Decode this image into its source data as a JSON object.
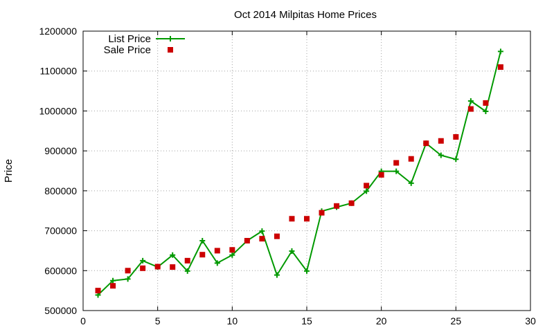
{
  "chart_data": {
    "type": "line",
    "title": "Oct 2014 Milpitas Home Prices",
    "xlabel": "",
    "ylabel": "Price",
    "xlim": [
      0,
      30
    ],
    "ylim": [
      500000,
      1200000
    ],
    "xticks": [
      0,
      5,
      10,
      15,
      20,
      25,
      30
    ],
    "yticks": [
      500000,
      600000,
      700000,
      800000,
      900000,
      1000000,
      1100000,
      1200000
    ],
    "grid": true,
    "legend_position": "top-left",
    "series": [
      {
        "name": "List Price",
        "style": "line-with-plus-markers",
        "color": "#009900",
        "x": [
          1,
          2,
          3,
          4,
          5,
          6,
          7,
          8,
          9,
          10,
          11,
          12,
          13,
          14,
          15,
          16,
          17,
          18,
          19,
          20,
          21,
          22,
          23,
          24,
          25,
          26,
          27,
          28
        ],
        "y": [
          539000,
          575000,
          579000,
          625000,
          609000,
          639000,
          599000,
          675000,
          619000,
          639000,
          675000,
          699000,
          589000,
          649000,
          599000,
          749000,
          759000,
          769000,
          799000,
          849000,
          849000,
          819000,
          919000,
          889000,
          879000,
          1025000,
          999000,
          1149000
        ]
      },
      {
        "name": "Sale Price",
        "style": "square-markers",
        "color": "#cc0000",
        "x": [
          1,
          2,
          3,
          4,
          5,
          6,
          7,
          8,
          9,
          10,
          11,
          12,
          13,
          14,
          15,
          16,
          17,
          18,
          19,
          20,
          21,
          22,
          23,
          24,
          25,
          26,
          27,
          28
        ],
        "y": [
          550000,
          562000,
          600000,
          606000,
          610000,
          609000,
          625000,
          640000,
          650000,
          652000,
          675000,
          680000,
          686000,
          730000,
          730000,
          745000,
          762000,
          769000,
          813000,
          840000,
          870000,
          880000,
          919000,
          925000,
          935000,
          1005000,
          1020000,
          1110000
        ]
      }
    ]
  }
}
